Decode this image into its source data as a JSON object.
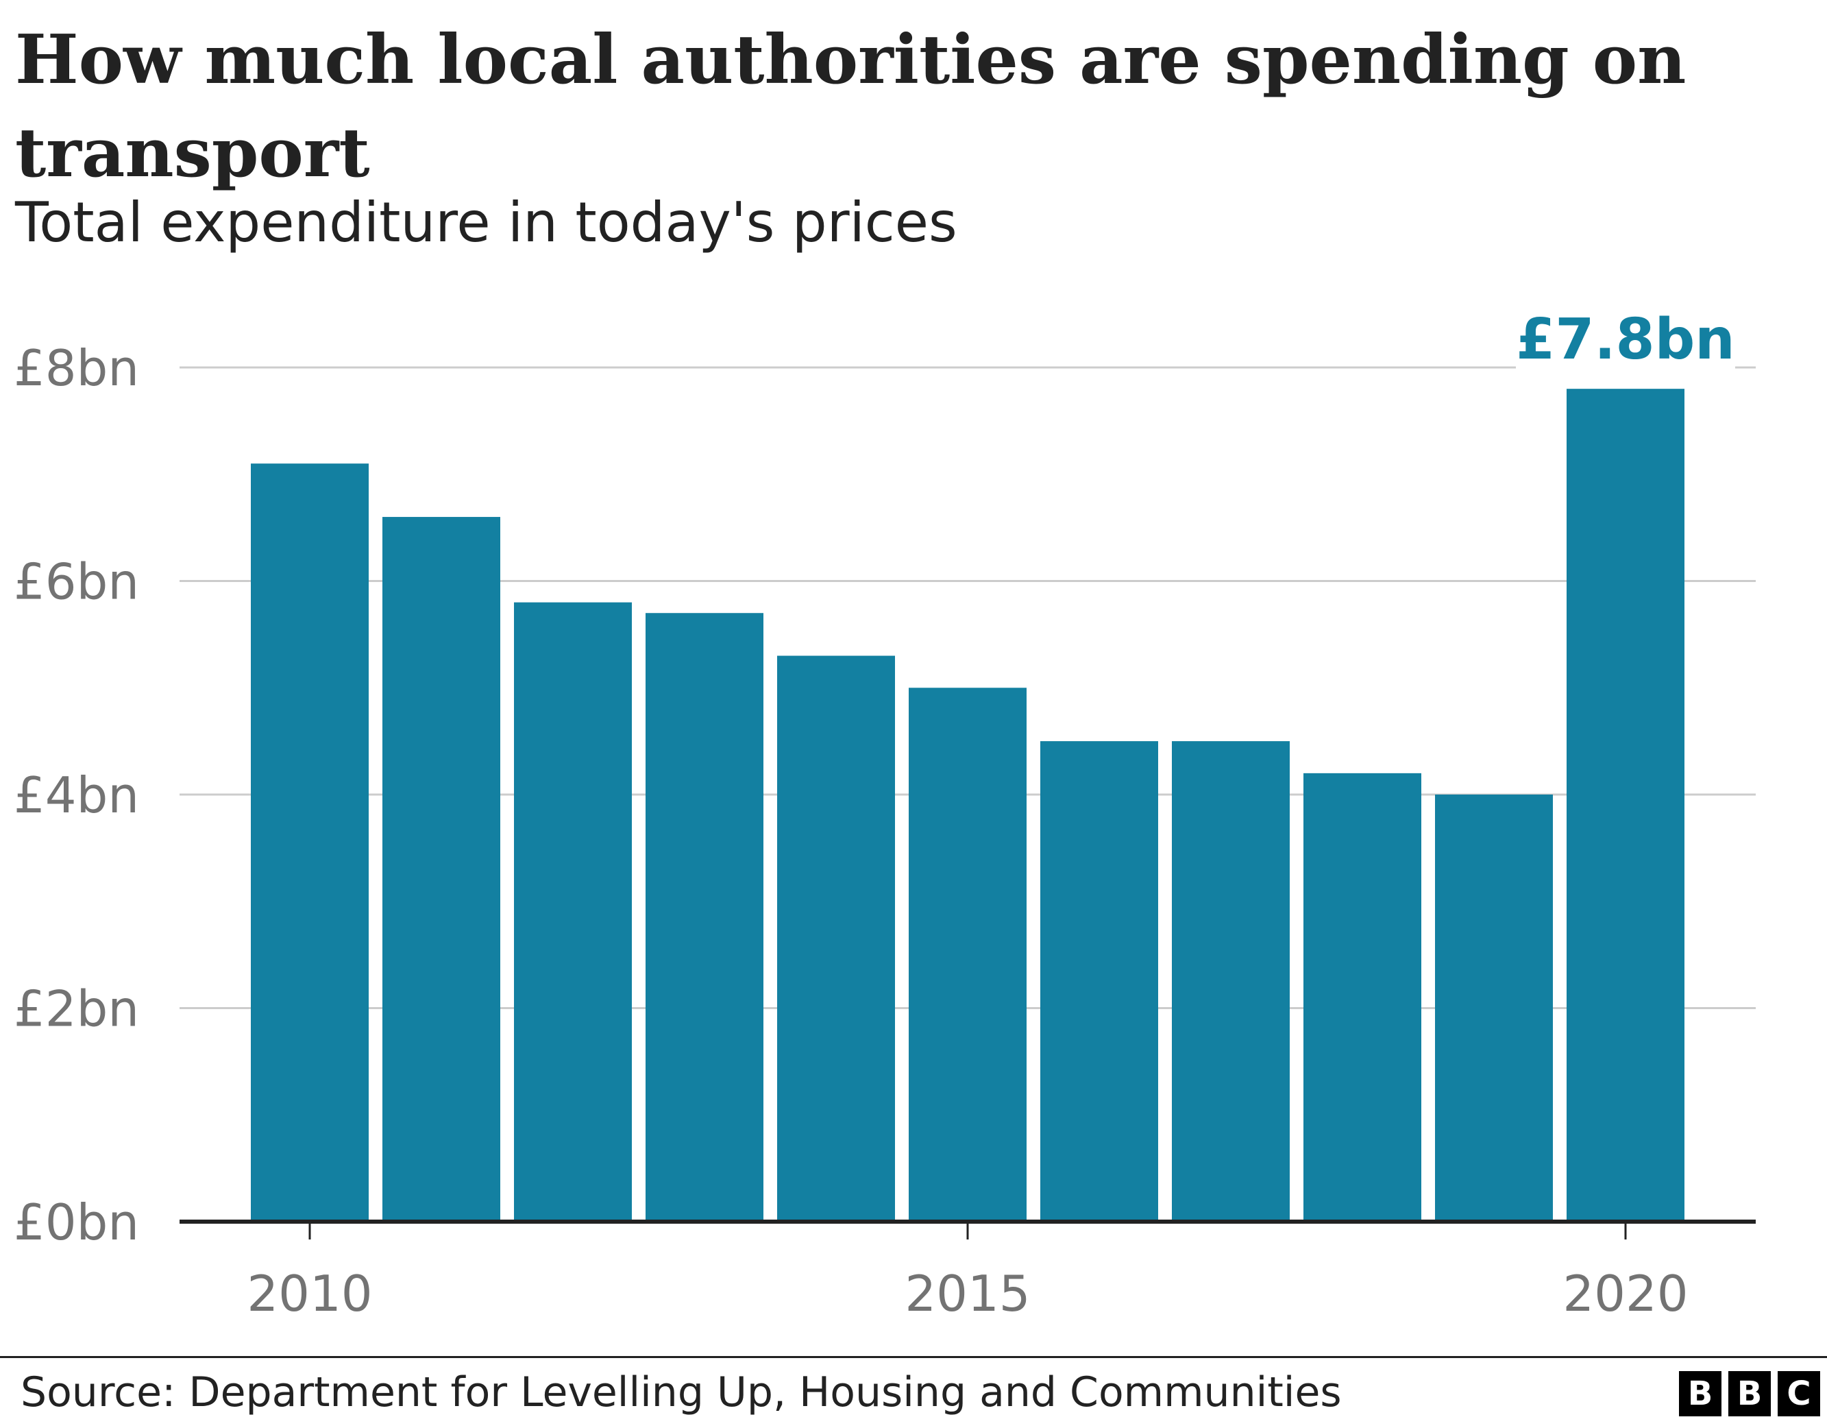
{
  "chart_data": {
    "type": "bar",
    "title": "How much local authorities are spending on transport",
    "subtitle": "Total expenditure in today's prices",
    "categories": [
      "2010",
      "2011",
      "2012",
      "2013",
      "2014",
      "2015",
      "2016",
      "2017",
      "2018",
      "2019",
      "2020"
    ],
    "values": [
      7.1,
      6.6,
      5.8,
      5.7,
      5.3,
      5.0,
      4.5,
      4.5,
      4.2,
      4.0,
      7.8
    ],
    "unit": "£bn",
    "ylim": [
      0,
      8
    ],
    "y_ticks": [
      0,
      2,
      4,
      6,
      8
    ],
    "y_tick_labels": [
      "£0bn",
      "£2bn",
      "£4bn",
      "£6bn",
      "£8bn"
    ],
    "x_tick_labels": [
      "2010",
      "2015",
      "2020"
    ],
    "x_tick_label_positions": [
      "2010",
      "2015",
      "2020"
    ],
    "annotation": {
      "category": "2020",
      "text": "£7.8bn"
    },
    "grid": true,
    "xlabel": "",
    "ylabel": "",
    "bar_color": "#1380A1",
    "grid_color": "#cccccc",
    "axis_color": "#222222",
    "tick_color": "#737373"
  },
  "footer": {
    "source": "Source: Department for Levelling Up, Housing and Communities",
    "logo_letters": [
      "B",
      "B",
      "C"
    ]
  }
}
